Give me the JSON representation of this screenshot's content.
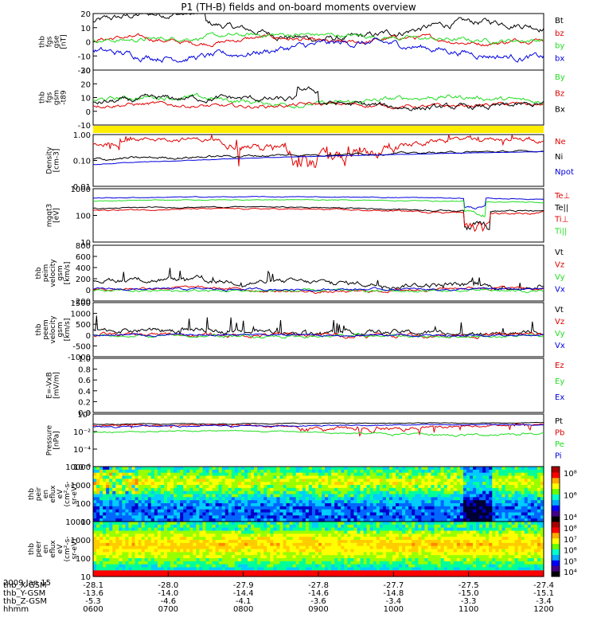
{
  "title": "P1 (TH-B) fields and on-board moments overview",
  "date_label": "2009 Jan 15",
  "colors": {
    "black": "#000000",
    "red": "#e00000",
    "green": "#22dd22",
    "blue": "#0000dd",
    "yellow": "#ffee00"
  },
  "chart_data": [
    {
      "type": "line",
      "ylabel": [
        "thb",
        "fgs",
        "gse",
        "[nT]"
      ],
      "ylim": [
        -20,
        20
      ],
      "yticks": [
        "20",
        "10",
        "0",
        "-10",
        "-20"
      ],
      "series": [
        {
          "name": "Bt",
          "color": "black"
        },
        {
          "name": "bz",
          "color": "red"
        },
        {
          "name": "by",
          "color": "green"
        },
        {
          "name": "bx",
          "color": "blue"
        }
      ]
    },
    {
      "type": "line",
      "ylabel": [
        "thb",
        "fgs",
        "gsm",
        "-t89"
      ],
      "ylim": [
        -15,
        30
      ],
      "yticks": [
        "30",
        "20",
        "10",
        "0",
        "-10"
      ],
      "series": [
        {
          "name": "By",
          "color": "green"
        },
        {
          "name": "Bz",
          "color": "red"
        },
        {
          "name": "Bx",
          "color": "black"
        }
      ]
    },
    {
      "type": "line",
      "ylabel": [
        "Density",
        "[cm-3]"
      ],
      "ylim": [
        0.01,
        1.0
      ],
      "scale": "log",
      "yticks": [
        "1.00",
        "0.10",
        "0.01"
      ],
      "series": [
        {
          "name": "Ne",
          "color": "red"
        },
        {
          "name": "Ni",
          "color": "black"
        },
        {
          "name": "Npot",
          "color": "blue"
        }
      ]
    },
    {
      "type": "line",
      "ylabel": [
        "mgqt3",
        "[eV]"
      ],
      "ylim": [
        10,
        10000
      ],
      "scale": "log",
      "yticks": [
        "1000",
        "100",
        "10"
      ],
      "series": [
        {
          "name": "Te⊥",
          "color": "red"
        },
        {
          "name": "Te||",
          "color": "black"
        },
        {
          "name": "Ti⊥",
          "color": "red"
        },
        {
          "name": "Ti||",
          "color": "green"
        }
      ]
    },
    {
      "type": "line",
      "ylabel": [
        "thb",
        "peim",
        "velocity",
        "gsm",
        "[km/s]"
      ],
      "ylim": [
        -200,
        800
      ],
      "yticks": [
        "800",
        "600",
        "400",
        "200",
        "0",
        "-200"
      ],
      "series": [
        {
          "name": "Vt",
          "color": "black"
        },
        {
          "name": "Vz",
          "color": "red"
        },
        {
          "name": "Vy",
          "color": "green"
        },
        {
          "name": "Vx",
          "color": "blue"
        }
      ]
    },
    {
      "type": "line",
      "ylabel": [
        "thb",
        "peem",
        "velocity",
        "gsm",
        "[km/s]"
      ],
      "ylim": [
        -1000,
        1500
      ],
      "yticks": [
        "1500",
        "1000",
        "500",
        "0",
        "-500",
        "-1000"
      ],
      "series": [
        {
          "name": "Vt",
          "color": "black"
        },
        {
          "name": "Vz",
          "color": "red"
        },
        {
          "name": "Vy",
          "color": "green"
        },
        {
          "name": "Vx",
          "color": "blue"
        }
      ]
    },
    {
      "type": "line",
      "ylabel": [
        "E=-VxB",
        "[mV/m]"
      ],
      "ylim": [
        0,
        1
      ],
      "yticks": [
        "1.0",
        "0.8",
        "0.6",
        "0.4",
        "0.2",
        "0.0"
      ],
      "series": [
        {
          "name": "Ez",
          "color": "red"
        },
        {
          "name": "Ey",
          "color": "green"
        },
        {
          "name": "Ex",
          "color": "blue"
        }
      ]
    },
    {
      "type": "line",
      "ylabel": [
        "Pressure",
        "[nPa]"
      ],
      "ylim": [
        1e-06,
        1
      ],
      "scale": "log",
      "yticks": [
        "10⁰",
        "10⁻²",
        "10⁻⁴",
        "10⁻⁶"
      ],
      "series": [
        {
          "name": "Pt",
          "color": "black"
        },
        {
          "name": "Pb",
          "color": "red"
        },
        {
          "name": "Pe",
          "color": "green"
        },
        {
          "name": "Pi",
          "color": "blue"
        }
      ]
    },
    {
      "type": "heatmap",
      "ylabel": [
        "thb",
        "peir",
        "en",
        "eflux",
        "eV",
        "(cm²-s-",
        "sr-eV)"
      ],
      "ylim": [
        10,
        20000
      ],
      "scale": "log",
      "yticks": [
        "10000",
        "1000",
        "100",
        "10"
      ],
      "colorbar": [
        "10⁸",
        "10⁶",
        "10⁴"
      ]
    },
    {
      "type": "heatmap",
      "ylabel": [
        "thb",
        "peer",
        "en",
        "eflux",
        "eV",
        "(cm²-s-",
        "sr-eV)"
      ],
      "ylim": [
        10,
        20000
      ],
      "scale": "log",
      "yticks": [
        "10000",
        "1000",
        "100",
        "10"
      ],
      "colorbar": [
        "10⁸",
        "10⁷",
        "10⁶",
        "10⁵",
        "10⁴"
      ]
    }
  ],
  "x_axis": {
    "rows": [
      {
        "label": "thb_X-GSM",
        "values": [
          "-28.1",
          "-28.0",
          "-27.9",
          "-27.8",
          "-27.7",
          "-27.5",
          "-27.4"
        ]
      },
      {
        "label": "thb_Y-GSM",
        "values": [
          "-13.6",
          "-14.0",
          "-14.4",
          "-14.6",
          "-14.8",
          "-15.0",
          "-15.1"
        ]
      },
      {
        "label": "thb_Z-GSM",
        "values": [
          "-5.3",
          "-4.6",
          "-4.1",
          "-3.6",
          "-3.4",
          "-3.3",
          "-3.4"
        ]
      },
      {
        "label": "hhmm",
        "values": [
          "0600",
          "0700",
          "0800",
          "0900",
          "1000",
          "1100",
          "1200"
        ]
      }
    ]
  }
}
